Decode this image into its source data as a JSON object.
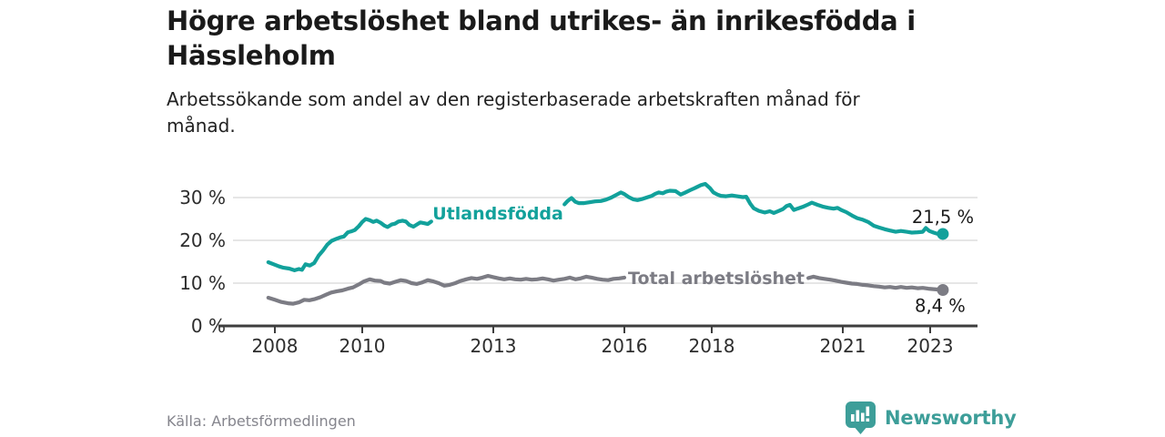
{
  "header": {
    "title_lines": [
      "Högre arbetslöshet bland utrikes- än inrikesfödda i",
      "Hässleholm"
    ],
    "subtitle_lines": [
      "Arbetssökande som andel av den registerbaserade arbetskraften månad för",
      "månad."
    ]
  },
  "footer": {
    "source": "Källa: Arbetsförmedlingen",
    "brand": "Newsworthy",
    "brand_color": "#3d9e99",
    "logo_icon": "bar-chart-speech-bubble-icon"
  },
  "colors": {
    "background": "#ffffff",
    "grid": "#d8d8d8",
    "axis": "#3e3e3e",
    "tick_text": "#2d2d2d",
    "value_label_text": "#1a1a1a"
  },
  "chart_data": {
    "type": "line",
    "title": "Högre arbetslöshet bland utrikes- än inrikesfödda i Hässleholm",
    "subtitle": "Arbetssökande som andel av den registerbaserade arbetskraften månad för månad.",
    "unit": "%",
    "grid": true,
    "legend_position": "inline-on-line",
    "x_axis": {
      "range": [
        2007.75,
        2023.95
      ],
      "ticks": [
        {
          "value": 2008,
          "label": "2008"
        },
        {
          "value": 2010,
          "label": "2010"
        },
        {
          "value": 2013,
          "label": "2013"
        },
        {
          "value": 2016,
          "label": "2016"
        },
        {
          "value": 2018,
          "label": "2018"
        },
        {
          "value": 2021,
          "label": "2021"
        },
        {
          "value": 2023,
          "label": "2023"
        }
      ]
    },
    "y_axis": {
      "range": [
        0,
        35
      ],
      "ticks": [
        {
          "value": 0,
          "label": "0 %"
        },
        {
          "value": 10,
          "label": "10 %"
        },
        {
          "value": 20,
          "label": "20 %"
        },
        {
          "value": 30,
          "label": "30 %"
        }
      ]
    },
    "series": [
      {
        "name": "Utlandsfödda",
        "color": "#12a19b",
        "end_value": 21.5,
        "end_label": "21,5 %",
        "end_label_position": "above",
        "segments": [
          [
            [
              2007.85,
              14.9
            ],
            [
              2008.0,
              14.3
            ],
            [
              2008.1,
              13.9
            ],
            [
              2008.2,
              13.6
            ],
            [
              2008.33,
              13.4
            ],
            [
              2008.45,
              13.0
            ],
            [
              2008.55,
              13.3
            ],
            [
              2008.62,
              13.1
            ],
            [
              2008.7,
              14.4
            ],
            [
              2008.8,
              14.1
            ],
            [
              2008.9,
              14.7
            ],
            [
              2009.0,
              16.4
            ],
            [
              2009.1,
              17.6
            ],
            [
              2009.2,
              19.0
            ],
            [
              2009.3,
              19.9
            ],
            [
              2009.42,
              20.4
            ],
            [
              2009.5,
              20.7
            ],
            [
              2009.58,
              20.9
            ],
            [
              2009.67,
              21.9
            ],
            [
              2009.75,
              22.1
            ],
            [
              2009.83,
              22.4
            ],
            [
              2009.92,
              23.3
            ],
            [
              2010.0,
              24.3
            ],
            [
              2010.08,
              25.0
            ],
            [
              2010.17,
              24.7
            ],
            [
              2010.25,
              24.3
            ],
            [
              2010.33,
              24.6
            ],
            [
              2010.42,
              24.1
            ],
            [
              2010.5,
              23.5
            ],
            [
              2010.58,
              23.1
            ],
            [
              2010.67,
              23.7
            ],
            [
              2010.75,
              23.9
            ],
            [
              2010.83,
              24.4
            ],
            [
              2010.92,
              24.6
            ],
            [
              2011.0,
              24.4
            ],
            [
              2011.08,
              23.6
            ],
            [
              2011.17,
              23.2
            ],
            [
              2011.25,
              23.7
            ],
            [
              2011.33,
              24.2
            ],
            [
              2011.42,
              24.0
            ],
            [
              2011.5,
              23.8
            ],
            [
              2011.58,
              24.4
            ]
          ],
          [
            [
              2014.63,
              28.4
            ],
            [
              2014.7,
              29.2
            ],
            [
              2014.79,
              29.9
            ],
            [
              2014.88,
              29.0
            ],
            [
              2014.96,
              28.7
            ],
            [
              2015.08,
              28.7
            ],
            [
              2015.2,
              28.9
            ],
            [
              2015.33,
              29.1
            ],
            [
              2015.46,
              29.2
            ],
            [
              2015.58,
              29.5
            ],
            [
              2015.7,
              30.0
            ],
            [
              2015.83,
              30.7
            ],
            [
              2015.92,
              31.2
            ],
            [
              2016.0,
              30.8
            ],
            [
              2016.1,
              30.1
            ],
            [
              2016.2,
              29.6
            ],
            [
              2016.3,
              29.4
            ],
            [
              2016.42,
              29.7
            ],
            [
              2016.54,
              30.1
            ],
            [
              2016.63,
              30.4
            ],
            [
              2016.71,
              30.9
            ],
            [
              2016.79,
              31.2
            ],
            [
              2016.88,
              31.0
            ],
            [
              2016.96,
              31.4
            ],
            [
              2017.04,
              31.6
            ],
            [
              2017.17,
              31.5
            ],
            [
              2017.29,
              30.7
            ],
            [
              2017.38,
              31.1
            ],
            [
              2017.5,
              31.7
            ],
            [
              2017.63,
              32.3
            ],
            [
              2017.75,
              32.9
            ],
            [
              2017.85,
              33.2
            ],
            [
              2017.96,
              32.2
            ],
            [
              2018.04,
              31.2
            ],
            [
              2018.13,
              30.7
            ],
            [
              2018.21,
              30.4
            ],
            [
              2018.33,
              30.3
            ],
            [
              2018.46,
              30.5
            ],
            [
              2018.58,
              30.3
            ],
            [
              2018.71,
              30.1
            ],
            [
              2018.79,
              30.2
            ],
            [
              2018.88,
              28.6
            ],
            [
              2018.96,
              27.5
            ],
            [
              2019.08,
              26.9
            ],
            [
              2019.21,
              26.5
            ],
            [
              2019.33,
              26.8
            ],
            [
              2019.42,
              26.4
            ],
            [
              2019.54,
              26.9
            ],
            [
              2019.63,
              27.3
            ],
            [
              2019.71,
              28.0
            ],
            [
              2019.79,
              28.3
            ],
            [
              2019.88,
              27.1
            ],
            [
              2019.96,
              27.4
            ],
            [
              2020.08,
              27.8
            ],
            [
              2020.21,
              28.4
            ],
            [
              2020.29,
              28.8
            ],
            [
              2020.42,
              28.3
            ],
            [
              2020.54,
              27.9
            ],
            [
              2020.67,
              27.6
            ],
            [
              2020.79,
              27.4
            ],
            [
              2020.88,
              27.6
            ],
            [
              2020.96,
              27.1
            ],
            [
              2021.08,
              26.6
            ],
            [
              2021.21,
              25.8
            ],
            [
              2021.33,
              25.2
            ],
            [
              2021.46,
              24.8
            ],
            [
              2021.58,
              24.3
            ],
            [
              2021.71,
              23.4
            ],
            [
              2021.83,
              23.0
            ],
            [
              2021.96,
              22.6
            ],
            [
              2022.08,
              22.3
            ],
            [
              2022.21,
              22.0
            ],
            [
              2022.33,
              22.2
            ],
            [
              2022.46,
              22.0
            ],
            [
              2022.58,
              21.8
            ],
            [
              2022.71,
              21.9
            ],
            [
              2022.83,
              22.0
            ],
            [
              2022.9,
              22.9
            ],
            [
              2022.98,
              22.2
            ],
            [
              2023.08,
              21.8
            ],
            [
              2023.17,
              21.5
            ],
            [
              2023.29,
              21.5
            ]
          ]
        ]
      },
      {
        "name": "Total arbetslöshet",
        "color": "#7c7c84",
        "end_value": 8.4,
        "end_label": "8,4 %",
        "end_label_position": "below",
        "segments": [
          [
            [
              2007.85,
              6.6
            ],
            [
              2008.0,
              6.1
            ],
            [
              2008.15,
              5.6
            ],
            [
              2008.3,
              5.3
            ],
            [
              2008.42,
              5.2
            ],
            [
              2008.55,
              5.5
            ],
            [
              2008.67,
              6.1
            ],
            [
              2008.79,
              6.0
            ],
            [
              2008.92,
              6.3
            ],
            [
              2009.04,
              6.7
            ],
            [
              2009.17,
              7.3
            ],
            [
              2009.29,
              7.8
            ],
            [
              2009.42,
              8.1
            ],
            [
              2009.54,
              8.3
            ],
            [
              2009.67,
              8.7
            ],
            [
              2009.79,
              9.0
            ],
            [
              2009.92,
              9.7
            ],
            [
              2010.04,
              10.4
            ],
            [
              2010.17,
              10.9
            ],
            [
              2010.29,
              10.6
            ],
            [
              2010.42,
              10.5
            ],
            [
              2010.5,
              10.1
            ],
            [
              2010.63,
              9.9
            ],
            [
              2010.75,
              10.3
            ],
            [
              2010.88,
              10.7
            ],
            [
              2011.0,
              10.5
            ],
            [
              2011.13,
              10.0
            ],
            [
              2011.25,
              9.8
            ],
            [
              2011.38,
              10.2
            ],
            [
              2011.5,
              10.7
            ],
            [
              2011.63,
              10.4
            ],
            [
              2011.75,
              10.0
            ],
            [
              2011.88,
              9.4
            ],
            [
              2012.0,
              9.6
            ],
            [
              2012.13,
              10.0
            ],
            [
              2012.25,
              10.5
            ],
            [
              2012.38,
              10.9
            ],
            [
              2012.5,
              11.2
            ],
            [
              2012.63,
              11.0
            ],
            [
              2012.75,
              11.3
            ],
            [
              2012.88,
              11.7
            ],
            [
              2013.0,
              11.4
            ],
            [
              2013.13,
              11.1
            ],
            [
              2013.25,
              10.9
            ],
            [
              2013.38,
              11.1
            ],
            [
              2013.5,
              10.9
            ],
            [
              2013.63,
              10.8
            ],
            [
              2013.75,
              11.0
            ],
            [
              2013.88,
              10.8
            ],
            [
              2014.0,
              10.9
            ],
            [
              2014.13,
              11.1
            ],
            [
              2014.25,
              10.9
            ],
            [
              2014.38,
              10.6
            ],
            [
              2014.5,
              10.8
            ],
            [
              2014.63,
              11.0
            ],
            [
              2014.75,
              11.3
            ],
            [
              2014.88,
              10.9
            ],
            [
              2015.0,
              11.1
            ],
            [
              2015.13,
              11.5
            ],
            [
              2015.25,
              11.3
            ],
            [
              2015.38,
              11.0
            ],
            [
              2015.5,
              10.8
            ],
            [
              2015.63,
              10.7
            ],
            [
              2015.75,
              11.0
            ],
            [
              2015.88,
              11.1
            ],
            [
              2016.0,
              11.3
            ]
          ],
          [
            [
              2020.21,
              11.2
            ],
            [
              2020.33,
              11.5
            ],
            [
              2020.46,
              11.2
            ],
            [
              2020.58,
              11.0
            ],
            [
              2020.71,
              10.8
            ],
            [
              2020.83,
              10.6
            ],
            [
              2020.96,
              10.3
            ],
            [
              2021.08,
              10.1
            ],
            [
              2021.21,
              9.9
            ],
            [
              2021.33,
              9.8
            ],
            [
              2021.46,
              9.6
            ],
            [
              2021.58,
              9.5
            ],
            [
              2021.71,
              9.3
            ],
            [
              2021.83,
              9.2
            ],
            [
              2021.96,
              9.0
            ],
            [
              2022.08,
              9.1
            ],
            [
              2022.21,
              8.9
            ],
            [
              2022.33,
              9.1
            ],
            [
              2022.46,
              8.9
            ],
            [
              2022.58,
              9.0
            ],
            [
              2022.71,
              8.8
            ],
            [
              2022.83,
              8.9
            ],
            [
              2022.96,
              8.7
            ],
            [
              2023.08,
              8.6
            ],
            [
              2023.21,
              8.5
            ],
            [
              2023.29,
              8.4
            ]
          ]
        ]
      }
    ]
  }
}
